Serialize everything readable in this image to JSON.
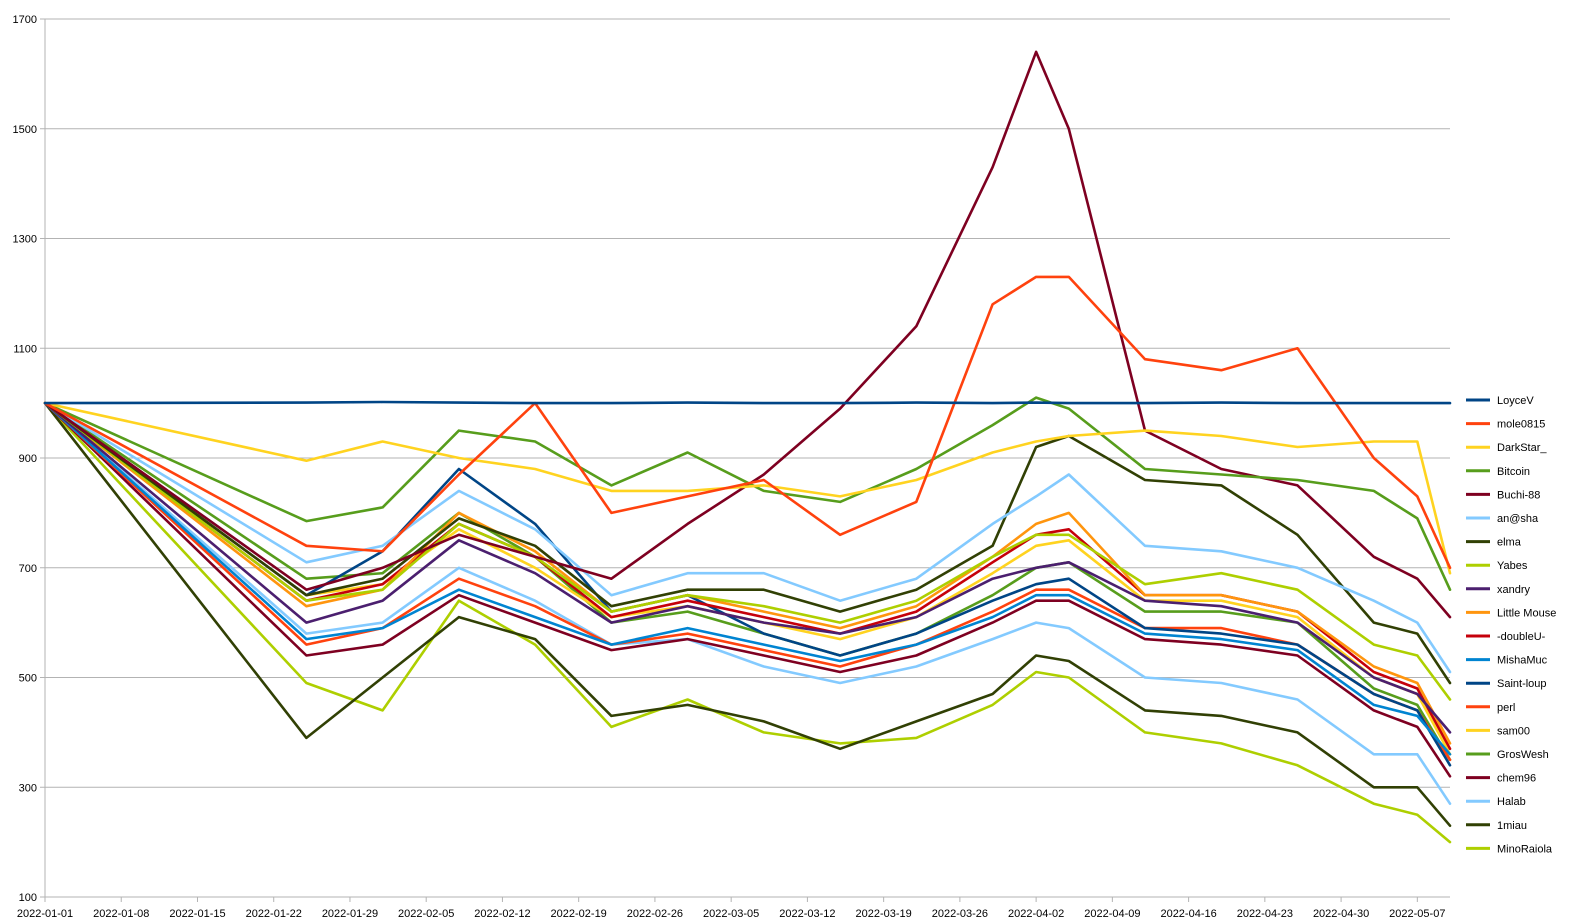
{
  "chart_data": {
    "type": "line",
    "title": "",
    "xlabel": "",
    "ylabel": "",
    "ylim": [
      100,
      1700
    ],
    "yticks": [
      100,
      300,
      500,
      700,
      900,
      1100,
      1300,
      1500,
      1700
    ],
    "xlim": [
      "2022-01-01",
      "2022-05-10"
    ],
    "xticks": [
      "2022-01-01",
      "2022-01-08",
      "2022-01-15",
      "2022-01-22",
      "2022-01-29",
      "2022-02-05",
      "2022-02-12",
      "2022-02-19",
      "2022-02-26",
      "2022-03-05",
      "2022-03-12",
      "2022-03-19",
      "2022-03-26",
      "2022-04-02",
      "2022-04-09",
      "2022-04-16",
      "2022-04-23",
      "2022-04-30",
      "2022-05-07"
    ],
    "grid": "horizontal",
    "legend_position": "right",
    "x": [
      "2022-01-01",
      "2022-01-25",
      "2022-02-01",
      "2022-02-08",
      "2022-02-15",
      "2022-02-22",
      "2022-03-01",
      "2022-03-08",
      "2022-03-15",
      "2022-03-22",
      "2022-03-29",
      "2022-04-02",
      "2022-04-05",
      "2022-04-12",
      "2022-04-19",
      "2022-04-26",
      "2022-05-03",
      "2022-05-07",
      "2022-05-10"
    ],
    "series": [
      {
        "name": "LoyceV",
        "color": "#004586",
        "values": [
          1000,
          1001,
          1002,
          1001,
          1000,
          1000,
          1001,
          1000,
          1000,
          1001,
          1000,
          1001,
          1000,
          1000,
          1001,
          1000,
          1000,
          1000,
          1000
        ]
      },
      {
        "name": "mole0815",
        "color": "#ff420e",
        "values": [
          1000,
          740,
          730,
          870,
          1000,
          800,
          830,
          860,
          760,
          820,
          1180,
          1230,
          1230,
          1080,
          1060,
          1100,
          900,
          830,
          700
        ]
      },
      {
        "name": "DarkStar_",
        "color": "#ffd320",
        "values": [
          1000,
          895,
          930,
          900,
          880,
          840,
          840,
          850,
          830,
          860,
          910,
          930,
          940,
          950,
          940,
          920,
          930,
          930,
          690
        ]
      },
      {
        "name": "Bitcoin",
        "color": "#579d1c",
        "values": [
          1000,
          785,
          810,
          950,
          930,
          850,
          910,
          840,
          820,
          880,
          960,
          1010,
          990,
          880,
          870,
          860,
          840,
          790,
          660
        ]
      },
      {
        "name": "Buchi-88",
        "color": "#7e0021",
        "values": [
          1000,
          660,
          700,
          760,
          720,
          680,
          780,
          870,
          990,
          1140,
          1430,
          1640,
          1500,
          950,
          880,
          850,
          720,
          680,
          610
        ]
      },
      {
        "name": "an@sha",
        "color": "#83caff",
        "values": [
          1000,
          710,
          740,
          840,
          770,
          650,
          690,
          690,
          640,
          680,
          780,
          830,
          870,
          740,
          730,
          700,
          640,
          600,
          510
        ]
      },
      {
        "name": "elma",
        "color": "#314004",
        "values": [
          1000,
          650,
          680,
          790,
          740,
          630,
          660,
          660,
          620,
          660,
          740,
          920,
          940,
          860,
          850,
          760,
          600,
          580,
          490
        ]
      },
      {
        "name": "Yabes",
        "color": "#aecf00",
        "values": [
          1000,
          640,
          660,
          780,
          720,
          620,
          650,
          630,
          600,
          640,
          720,
          760,
          760,
          670,
          690,
          660,
          560,
          540,
          460
        ]
      },
      {
        "name": "xandry",
        "color": "#4b1f6f",
        "values": [
          1000,
          600,
          640,
          750,
          690,
          600,
          630,
          600,
          580,
          610,
          680,
          700,
          710,
          640,
          630,
          600,
          500,
          470,
          400
        ]
      },
      {
        "name": "Little Mouse",
        "color": "#ff950e",
        "values": [
          1000,
          630,
          660,
          800,
          730,
          620,
          650,
          620,
          590,
          630,
          720,
          780,
          800,
          650,
          650,
          620,
          520,
          490,
          380
        ]
      },
      {
        "name": "-doubleU-",
        "color": "#c5000b",
        "values": [
          1000,
          640,
          670,
          780,
          720,
          610,
          640,
          610,
          580,
          620,
          710,
          760,
          770,
          650,
          650,
          620,
          510,
          480,
          370
        ]
      },
      {
        "name": "MishaMuc",
        "color": "#0084d1",
        "values": [
          1000,
          570,
          590,
          660,
          610,
          560,
          590,
          560,
          530,
          560,
          610,
          650,
          650,
          580,
          570,
          550,
          450,
          430,
          360
        ]
      },
      {
        "name": "Saint-loup",
        "color": "#004586",
        "values": [
          1000,
          650,
          730,
          880,
          780,
          620,
          650,
          580,
          540,
          580,
          640,
          670,
          680,
          590,
          580,
          560,
          470,
          440,
          340
        ]
      },
      {
        "name": "perl",
        "color": "#ff420e",
        "values": [
          1000,
          560,
          590,
          680,
          630,
          560,
          580,
          550,
          520,
          560,
          620,
          660,
          660,
          590,
          590,
          560,
          470,
          440,
          350
        ]
      },
      {
        "name": "sam00",
        "color": "#ffd320",
        "values": [
          1000,
          650,
          670,
          770,
          700,
          610,
          630,
          600,
          570,
          610,
          690,
          740,
          750,
          640,
          640,
          610,
          500,
          470,
          360
        ]
      },
      {
        "name": "GrosWesh",
        "color": "#579d1c",
        "values": [
          1000,
          680,
          690,
          800,
          720,
          600,
          620,
          580,
          540,
          580,
          650,
          700,
          710,
          620,
          620,
          600,
          480,
          450,
          350
        ]
      },
      {
        "name": "chem96",
        "color": "#7e0021",
        "values": [
          1000,
          540,
          560,
          650,
          600,
          550,
          570,
          540,
          510,
          540,
          600,
          640,
          640,
          570,
          560,
          540,
          440,
          410,
          320
        ]
      },
      {
        "name": "Halab",
        "color": "#83caff",
        "values": [
          1000,
          580,
          600,
          700,
          640,
          560,
          570,
          520,
          490,
          520,
          570,
          600,
          590,
          500,
          490,
          460,
          360,
          360,
          270
        ]
      },
      {
        "name": "1miau",
        "color": "#314004",
        "values": [
          1000,
          390,
          500,
          610,
          570,
          430,
          450,
          420,
          370,
          420,
          470,
          540,
          530,
          440,
          430,
          400,
          300,
          300,
          230
        ]
      },
      {
        "name": "MinoRaiola",
        "color": "#aecf00",
        "values": [
          1000,
          490,
          440,
          640,
          560,
          410,
          460,
          400,
          380,
          390,
          450,
          510,
          500,
          400,
          380,
          340,
          270,
          250,
          200
        ]
      }
    ]
  }
}
